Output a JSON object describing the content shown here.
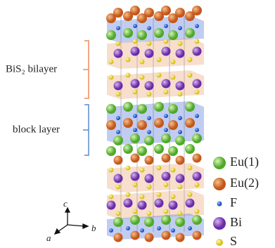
{
  "labels": {
    "bilayer": "BiS₂ bilayer",
    "block": "block layer"
  },
  "legend": [
    "Eu(1)",
    "Eu(2)",
    "F",
    "Bi",
    "S"
  ],
  "axes": {
    "a": "a",
    "b": "b",
    "c": "c"
  }
}
